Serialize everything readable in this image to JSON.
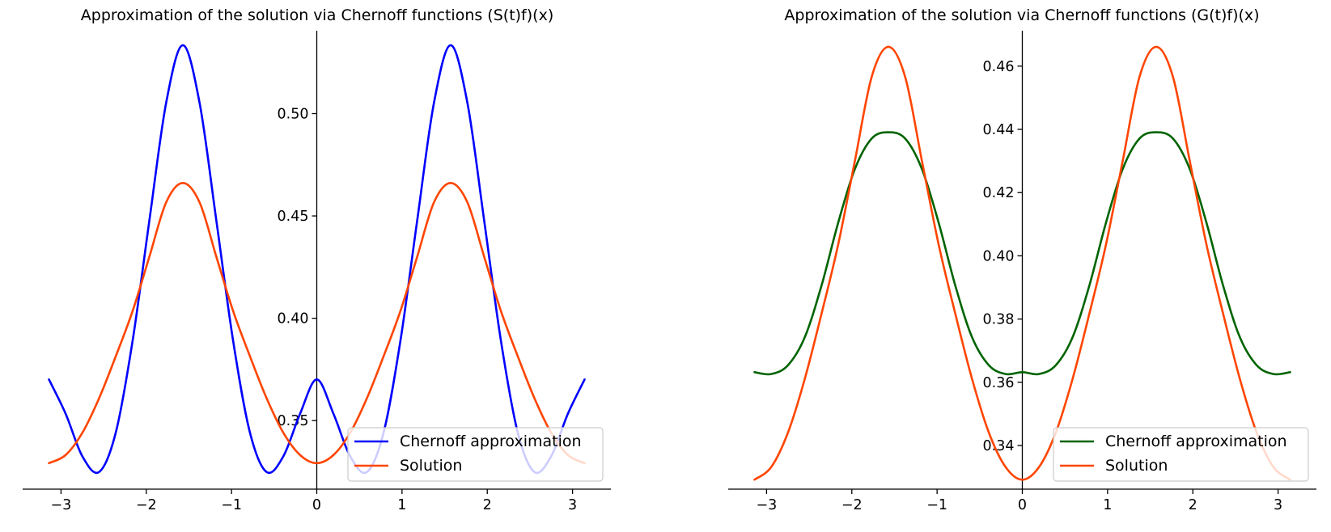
{
  "chart_data": [
    {
      "type": "line",
      "title": "Approximation of the solution via Chernoff functions (S(t)f)(x)",
      "xlabel": "",
      "ylabel": "",
      "xlim": [
        -3.45,
        3.45
      ],
      "ylim": [
        0.3165,
        0.5405
      ],
      "xticks": [
        -3,
        -2,
        -1,
        0,
        1,
        2,
        3
      ],
      "xtick_labels": [
        "−3",
        "−2",
        "−1",
        "0",
        "1",
        "2",
        "3"
      ],
      "yticks": [
        0.35,
        0.4,
        0.45,
        0.5
      ],
      "ytick_labels": [
        "0.35",
        "0.40",
        "0.45",
        "0.50"
      ],
      "spines": "centered at zero",
      "grid": false,
      "legend_position": "lower-right",
      "series": [
        {
          "name": "Chernoff approximation",
          "color": "#0000ff",
          "x": [
            -3.1416,
            -2.9452,
            -2.7489,
            -2.5525,
            -2.3562,
            -2.1598,
            -1.9635,
            -1.7671,
            -1.5708,
            -1.3744,
            -1.1781,
            -0.9817,
            -0.7854,
            -0.589,
            -0.3927,
            -0.1963,
            0.0,
            0.1963,
            0.3927,
            0.589,
            0.7854,
            0.9817,
            1.1781,
            1.3744,
            1.5708,
            1.7671,
            1.9635,
            2.1598,
            2.3562,
            2.5525,
            2.7489,
            2.9452,
            3.1416
          ],
          "y": [
            0.3701,
            0.3533,
            0.3325,
            0.3249,
            0.3444,
            0.3891,
            0.4478,
            0.5052,
            0.5334,
            0.5052,
            0.4478,
            0.3891,
            0.3444,
            0.3249,
            0.3325,
            0.3533,
            0.3701,
            0.3533,
            0.3325,
            0.3249,
            0.3444,
            0.3891,
            0.4478,
            0.5052,
            0.5334,
            0.5052,
            0.4478,
            0.3891,
            0.3444,
            0.3249,
            0.3325,
            0.3533,
            0.3701
          ]
        },
        {
          "name": "Solution",
          "color": "#ff4500",
          "x": [
            -3.1416,
            -2.9452,
            -2.7489,
            -2.5525,
            -2.3562,
            -2.1598,
            -1.9635,
            -1.7671,
            -1.5708,
            -1.3744,
            -1.1781,
            -0.9817,
            -0.7854,
            -0.589,
            -0.3927,
            -0.1963,
            0.0,
            0.1963,
            0.3927,
            0.589,
            0.7854,
            0.9817,
            1.1781,
            1.3744,
            1.5708,
            1.7671,
            1.9635,
            2.1598,
            2.3562,
            2.5525,
            2.7489,
            2.9452,
            3.1416
          ],
          "y": [
            0.3292,
            0.3332,
            0.3441,
            0.361,
            0.3816,
            0.4036,
            0.4301,
            0.4566,
            0.4661,
            0.4566,
            0.4301,
            0.4036,
            0.3816,
            0.361,
            0.3441,
            0.3332,
            0.3292,
            0.3332,
            0.3441,
            0.361,
            0.3816,
            0.4036,
            0.4301,
            0.4566,
            0.4661,
            0.4566,
            0.4301,
            0.4036,
            0.3816,
            0.361,
            0.3441,
            0.3332,
            0.3292
          ]
        }
      ]
    },
    {
      "type": "line",
      "title": "Approximation of the solution via Chernoff functions (G(t)f)(x)",
      "xlabel": "",
      "ylabel": "",
      "xlim": [
        -3.45,
        3.45
      ],
      "ylim": [
        0.3262,
        0.4712
      ],
      "xticks": [
        -3,
        -2,
        -1,
        0,
        1,
        2,
        3
      ],
      "xtick_labels": [
        "−3",
        "−2",
        "−1",
        "0",
        "1",
        "2",
        "3"
      ],
      "yticks": [
        0.34,
        0.36,
        0.38,
        0.4,
        0.42,
        0.44,
        0.46
      ],
      "ytick_labels": [
        "0.34",
        "0.36",
        "0.38",
        "0.40",
        "0.42",
        "0.44",
        "0.46"
      ],
      "spines": "centered at zero",
      "grid": false,
      "legend_position": "lower-right",
      "series": [
        {
          "name": "Chernoff approximation",
          "color": "#006400",
          "x": [
            -3.1416,
            -2.9452,
            -2.7489,
            -2.5525,
            -2.3562,
            -2.1598,
            -1.9635,
            -1.7671,
            -1.5708,
            -1.3744,
            -1.1781,
            -0.9817,
            -0.7854,
            -0.589,
            -0.3927,
            -0.1963,
            0.0,
            0.1963,
            0.3927,
            0.589,
            0.7854,
            0.9817,
            1.1781,
            1.3744,
            1.5708,
            1.7671,
            1.9635,
            2.1598,
            2.3562,
            2.5525,
            2.7489,
            2.9452,
            3.1416
          ],
          "y": [
            0.3632,
            0.3626,
            0.3654,
            0.3742,
            0.3905,
            0.4105,
            0.4275,
            0.4371,
            0.4391,
            0.4371,
            0.4275,
            0.4105,
            0.3905,
            0.3742,
            0.3654,
            0.3626,
            0.3632,
            0.3626,
            0.3654,
            0.3742,
            0.3905,
            0.4105,
            0.4275,
            0.4371,
            0.4391,
            0.4371,
            0.4275,
            0.4105,
            0.3905,
            0.3742,
            0.3654,
            0.3626,
            0.3632
          ]
        },
        {
          "name": "Solution",
          "color": "#ff4500",
          "x": [
            -3.1416,
            -2.9452,
            -2.7489,
            -2.5525,
            -2.3562,
            -2.1598,
            -1.9635,
            -1.7671,
            -1.5708,
            -1.3744,
            -1.1781,
            -0.9817,
            -0.7854,
            -0.589,
            -0.3927,
            -0.1963,
            0.0,
            0.1963,
            0.3927,
            0.589,
            0.7854,
            0.9817,
            1.1781,
            1.3744,
            1.5708,
            1.7671,
            1.9635,
            2.1598,
            2.3562,
            2.5525,
            2.7489,
            2.9452,
            3.1416
          ],
          "y": [
            0.3292,
            0.3332,
            0.3441,
            0.361,
            0.3816,
            0.4036,
            0.4301,
            0.4566,
            0.4661,
            0.4566,
            0.4301,
            0.4036,
            0.3816,
            0.361,
            0.3441,
            0.3332,
            0.3292,
            0.3332,
            0.3441,
            0.361,
            0.3816,
            0.4036,
            0.4301,
            0.4566,
            0.4661,
            0.4566,
            0.4301,
            0.4036,
            0.3816,
            0.361,
            0.3441,
            0.3332,
            0.3292
          ]
        }
      ]
    }
  ]
}
